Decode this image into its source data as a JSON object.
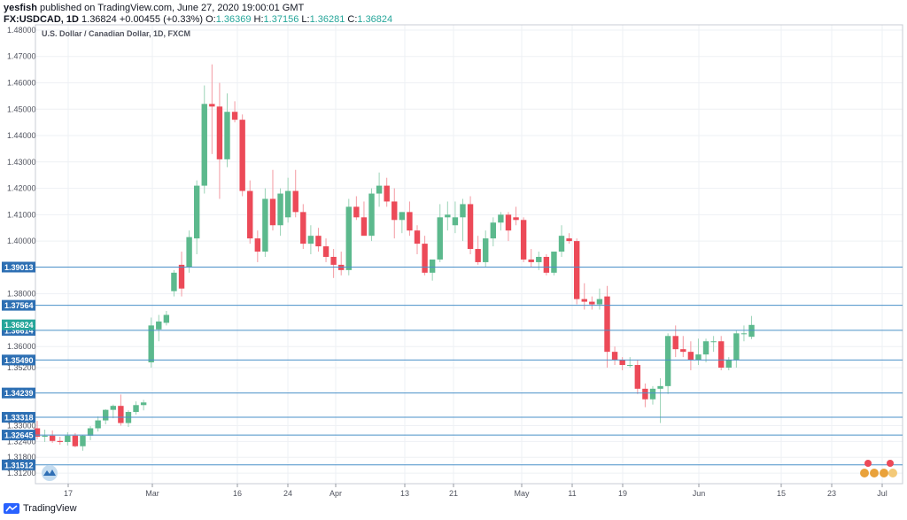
{
  "header": {
    "author": "yesfish",
    "published_text": "published on TradingView.com, June 27, 2020 19:00:01 GMT",
    "symbol": "FX:USDCAD, 1D",
    "last": "1.36824",
    "change": "+0.00455 (+0.33%)",
    "o_label": "O:",
    "o_val": "1.36369",
    "h_label": "H:",
    "h_val": "1.37156",
    "l_label": "L:",
    "l_val": "1.36281",
    "c_label": "C:",
    "c_val": "1.36824"
  },
  "footer": {
    "brand": "TradingView"
  },
  "colors": {
    "up": "#5cb98d",
    "down": "#ec4a58",
    "level": "#4a90c8",
    "tag": "#2d6fb3",
    "last_tag": "#26a69a",
    "grid": "#eef0f4"
  },
  "chart_data": {
    "type": "candlestick",
    "title": "U.S. Dollar / Canadian Dollar, 1D, FXCM",
    "ylim": [
      1.308,
      1.482
    ],
    "y_ticks": [
      "1.48000",
      "1.47000",
      "1.46000",
      "1.45000",
      "1.44000",
      "1.43000",
      "1.42000",
      "1.41000",
      "1.40000",
      "1.38000",
      "1.36000",
      "1.35200",
      "1.33000",
      "1.32400",
      "1.31800",
      "1.31200"
    ],
    "x_ticks": [
      "17",
      "Mar",
      "16",
      "24",
      "Apr",
      "13",
      "21",
      "May",
      "11",
      "19",
      "Jun",
      "15",
      "23",
      "Jul"
    ],
    "horizontal_levels": [
      {
        "value": 1.39013,
        "label": "1.39013"
      },
      {
        "value": 1.37564,
        "label": "1.37564"
      },
      {
        "value": 1.36614,
        "label": "1.36614"
      },
      {
        "value": 1.3549,
        "label": "1.35490"
      },
      {
        "value": 1.34239,
        "label": "1.34239"
      },
      {
        "value": 1.33318,
        "label": "1.33318"
      },
      {
        "value": 1.32645,
        "label": "1.32645"
      },
      {
        "value": 1.31512,
        "label": "1.31512"
      }
    ],
    "last_price": {
      "value": 1.36824,
      "label": "1.36824"
    },
    "candles": [
      [
        1.329,
        1.3318,
        1.3248,
        1.3258
      ],
      [
        1.3258,
        1.3285,
        1.3238,
        1.3262
      ],
      [
        1.3262,
        1.3282,
        1.3235,
        1.3242
      ],
      [
        1.3242,
        1.3258,
        1.3228,
        1.3238
      ],
      [
        1.3238,
        1.3275,
        1.3225,
        1.3262
      ],
      [
        1.3262,
        1.3272,
        1.3218,
        1.3222
      ],
      [
        1.3222,
        1.3265,
        1.3205,
        1.3262
      ],
      [
        1.3262,
        1.3298,
        1.3245,
        1.329
      ],
      [
        1.329,
        1.3335,
        1.3278,
        1.332
      ],
      [
        1.332,
        1.3362,
        1.3305,
        1.336
      ],
      [
        1.336,
        1.338,
        1.3328,
        1.3375
      ],
      [
        1.3375,
        1.3418,
        1.33,
        1.331
      ],
      [
        1.331,
        1.3358,
        1.3295,
        1.3352
      ],
      [
        1.3352,
        1.3392,
        1.3342,
        1.3378
      ],
      [
        1.3378,
        1.3398,
        1.3358,
        1.3388
      ],
      [
        1.354,
        1.371,
        1.352,
        1.368
      ],
      [
        1.3665,
        1.372,
        1.362,
        1.3695
      ],
      [
        1.369,
        1.3735,
        1.368,
        1.372
      ],
      [
        1.381,
        1.389,
        1.379,
        1.388
      ],
      [
        1.391,
        1.396,
        1.379,
        1.382
      ],
      [
        1.39,
        1.404,
        1.388,
        1.4015
      ],
      [
        1.401,
        1.423,
        1.395,
        1.421
      ],
      [
        1.421,
        1.459,
        1.418,
        1.452
      ],
      [
        1.452,
        1.467,
        1.433,
        1.451
      ],
      [
        1.451,
        1.46,
        1.416,
        1.431
      ],
      [
        1.431,
        1.456,
        1.428,
        1.449
      ],
      [
        1.449,
        1.453,
        1.445,
        1.446
      ],
      [
        1.446,
        1.448,
        1.417,
        1.419
      ],
      [
        1.419,
        1.423,
        1.399,
        1.401
      ],
      [
        1.401,
        1.404,
        1.392,
        1.396
      ],
      [
        1.396,
        1.42,
        1.394,
        1.416
      ],
      [
        1.416,
        1.427,
        1.404,
        1.406
      ],
      [
        1.406,
        1.42,
        1.402,
        1.418
      ],
      [
        1.409,
        1.424,
        1.407,
        1.419
      ],
      [
        1.419,
        1.427,
        1.409,
        1.411
      ],
      [
        1.411,
        1.414,
        1.397,
        1.399
      ],
      [
        1.399,
        1.406,
        1.395,
        1.402
      ],
      [
        1.402,
        1.405,
        1.396,
        1.398
      ],
      [
        1.398,
        1.401,
        1.392,
        1.394
      ],
      [
        1.394,
        1.397,
        1.386,
        1.391
      ],
      [
        1.391,
        1.396,
        1.387,
        1.389
      ],
      [
        1.389,
        1.416,
        1.387,
        1.413
      ],
      [
        1.413,
        1.417,
        1.408,
        1.409
      ],
      [
        1.409,
        1.415,
        1.403,
        1.402
      ],
      [
        1.402,
        1.42,
        1.4,
        1.418
      ],
      [
        1.418,
        1.426,
        1.413,
        1.421
      ],
      [
        1.421,
        1.424,
        1.413,
        1.415
      ],
      [
        1.415,
        1.42,
        1.401,
        1.408
      ],
      [
        1.408,
        1.411,
        1.403,
        1.411
      ],
      [
        1.411,
        1.415,
        1.402,
        1.404
      ],
      [
        1.404,
        1.406,
        1.395,
        1.399
      ],
      [
        1.399,
        1.402,
        1.387,
        1.388
      ],
      [
        1.388,
        1.392,
        1.385,
        1.393
      ],
      [
        1.393,
        1.414,
        1.392,
        1.409
      ],
      [
        1.409,
        1.415,
        1.404,
        1.41
      ],
      [
        1.406,
        1.415,
        1.403,
        1.409
      ],
      [
        1.409,
        1.416,
        1.4,
        1.414
      ],
      [
        1.414,
        1.417,
        1.395,
        1.397
      ],
      [
        1.397,
        1.402,
        1.391,
        1.392
      ],
      [
        1.392,
        1.404,
        1.39,
        1.401
      ],
      [
        1.401,
        1.409,
        1.398,
        1.407
      ],
      [
        1.407,
        1.411,
        1.404,
        1.41
      ],
      [
        1.41,
        1.411,
        1.4,
        1.404
      ],
      [
        1.409,
        1.413,
        1.406,
        1.408
      ],
      [
        1.408,
        1.409,
        1.392,
        1.393
      ],
      [
        1.393,
        1.397,
        1.39,
        1.392
      ],
      [
        1.392,
        1.396,
        1.389,
        1.394
      ],
      [
        1.394,
        1.395,
        1.387,
        1.388
      ],
      [
        1.388,
        1.396,
        1.387,
        1.396
      ],
      [
        1.396,
        1.406,
        1.394,
        1.402
      ],
      [
        1.401,
        1.403,
        1.399,
        1.4
      ],
      [
        1.4,
        1.401,
        1.376,
        1.378
      ],
      [
        1.378,
        1.384,
        1.374,
        1.377
      ],
      [
        1.377,
        1.379,
        1.374,
        1.376
      ],
      [
        1.376,
        1.382,
        1.374,
        1.378
      ],
      [
        1.379,
        1.383,
        1.352,
        1.358
      ],
      [
        1.358,
        1.36,
        1.353,
        1.355
      ],
      [
        1.355,
        1.356,
        1.351,
        1.353
      ],
      [
        1.353,
        1.356,
        1.352,
        1.353
      ],
      [
        1.353,
        1.355,
        1.342,
        1.344
      ],
      [
        1.344,
        1.346,
        1.337,
        1.34
      ],
      [
        1.34,
        1.345,
        1.338,
        1.344
      ],
      [
        1.344,
        1.348,
        1.331,
        1.345
      ],
      [
        1.345,
        1.365,
        1.342,
        1.364
      ],
      [
        1.364,
        1.368,
        1.356,
        1.359
      ],
      [
        1.359,
        1.364,
        1.356,
        1.358
      ],
      [
        1.358,
        1.362,
        1.351,
        1.355
      ],
      [
        1.355,
        1.363,
        1.353,
        1.357
      ],
      [
        1.357,
        1.363,
        1.354,
        1.362
      ],
      [
        1.362,
        1.364,
        1.358,
        1.362
      ],
      [
        1.362,
        1.364,
        1.351,
        1.352
      ],
      [
        1.352,
        1.356,
        1.351,
        1.355
      ],
      [
        1.355,
        1.366,
        1.352,
        1.365
      ],
      [
        1.365,
        1.368,
        1.362,
        1.365
      ],
      [
        1.3637,
        1.3716,
        1.3628,
        1.3682
      ]
    ]
  }
}
